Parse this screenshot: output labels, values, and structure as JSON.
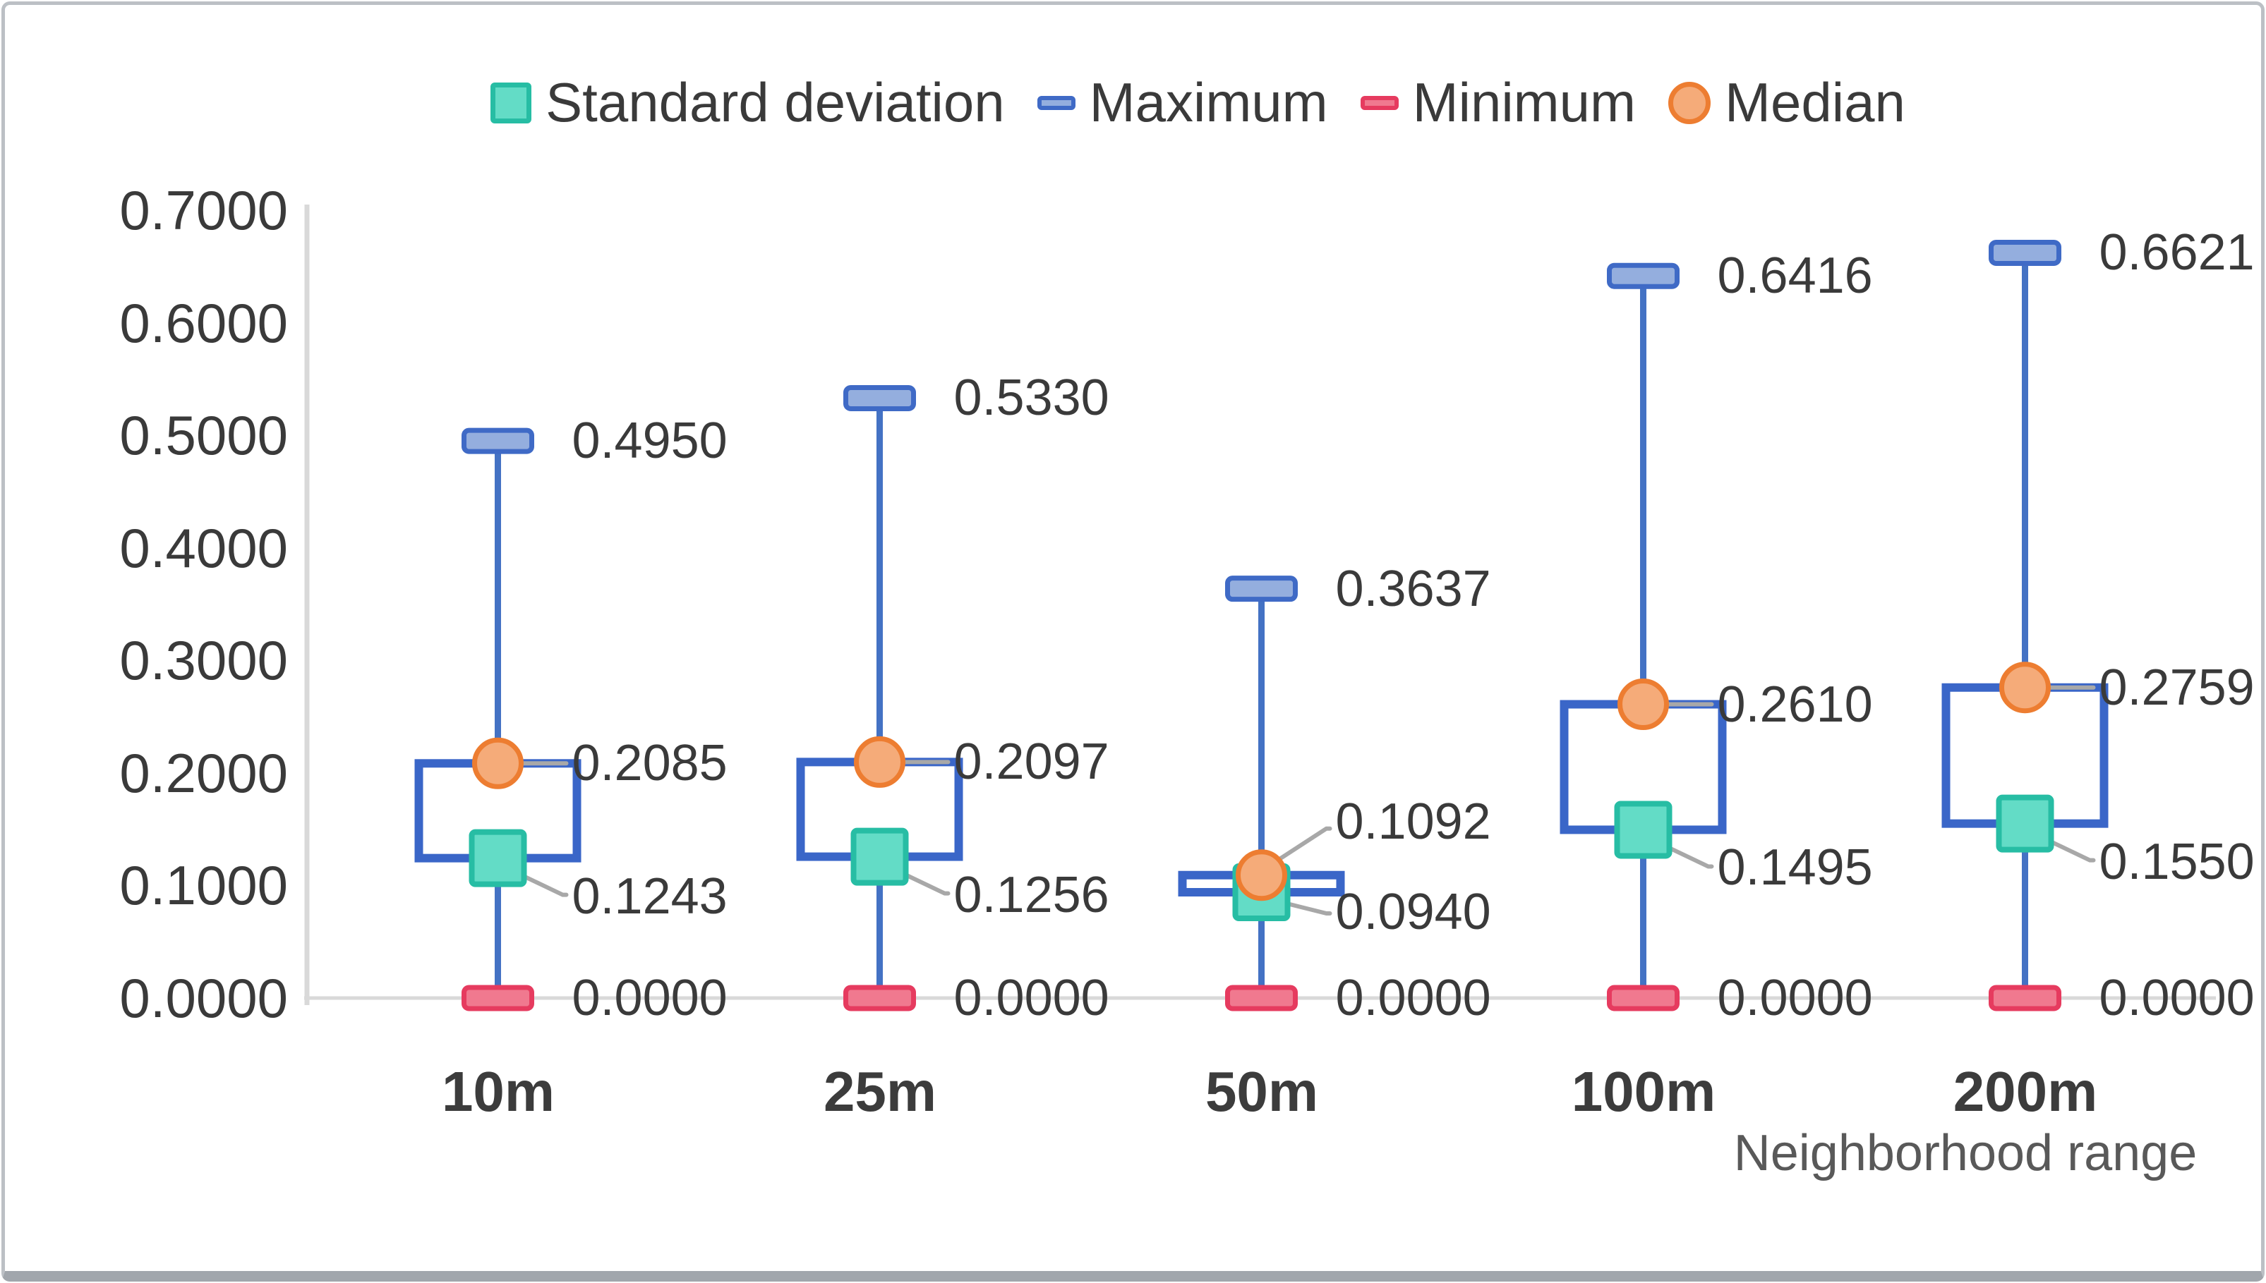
{
  "chart_data": {
    "type": "boxplot",
    "title": "",
    "xlabel": "Neighborhood range",
    "ylabel": "",
    "categories": [
      "10m",
      "25m",
      "50m",
      "100m",
      "200m"
    ],
    "series": [
      {
        "name": "Standard deviation",
        "marker": "square",
        "fill": "#63dcc6",
        "border": "#27bda4",
        "values": [
          0.1243,
          0.1256,
          0.094,
          0.1495,
          0.155
        ]
      },
      {
        "name": "Maximum",
        "marker": "dash",
        "fill": "#94aede",
        "border": "#3f6ac6",
        "values": [
          0.495,
          0.533,
          0.3637,
          0.6416,
          0.6621
        ]
      },
      {
        "name": "Minimum",
        "marker": "dash",
        "fill": "#f0798f",
        "border": "#e63b5f",
        "values": [
          0.0,
          0.0,
          0.0,
          0.0,
          0.0
        ]
      },
      {
        "name": "Median",
        "marker": "circle",
        "fill": "#f5ab79",
        "border": "#ed7d31",
        "values": [
          0.2085,
          0.2097,
          0.1092,
          0.261,
          0.2759
        ]
      }
    ],
    "ylim": [
      0,
      0.7
    ],
    "ytick_step": 0.1,
    "ytick_labels": [
      "0.0000",
      "0.1000",
      "0.2000",
      "0.3000",
      "0.4000",
      "0.5000",
      "0.6000",
      "0.7000"
    ],
    "value_label_format": "0.0000",
    "legend_position": "top",
    "grid": "zero-line-only",
    "box": {
      "from_series": "Standard deviation",
      "to_series": "Median",
      "stroke": "#3a66c8",
      "fill": "#ffffff"
    },
    "whisker_color": "#4472c4",
    "leader_color": "#a8a8a8",
    "axis_line_color": "#d9d9d9",
    "text_color": "#3a3a3a",
    "axis_title_color": "#595959"
  }
}
